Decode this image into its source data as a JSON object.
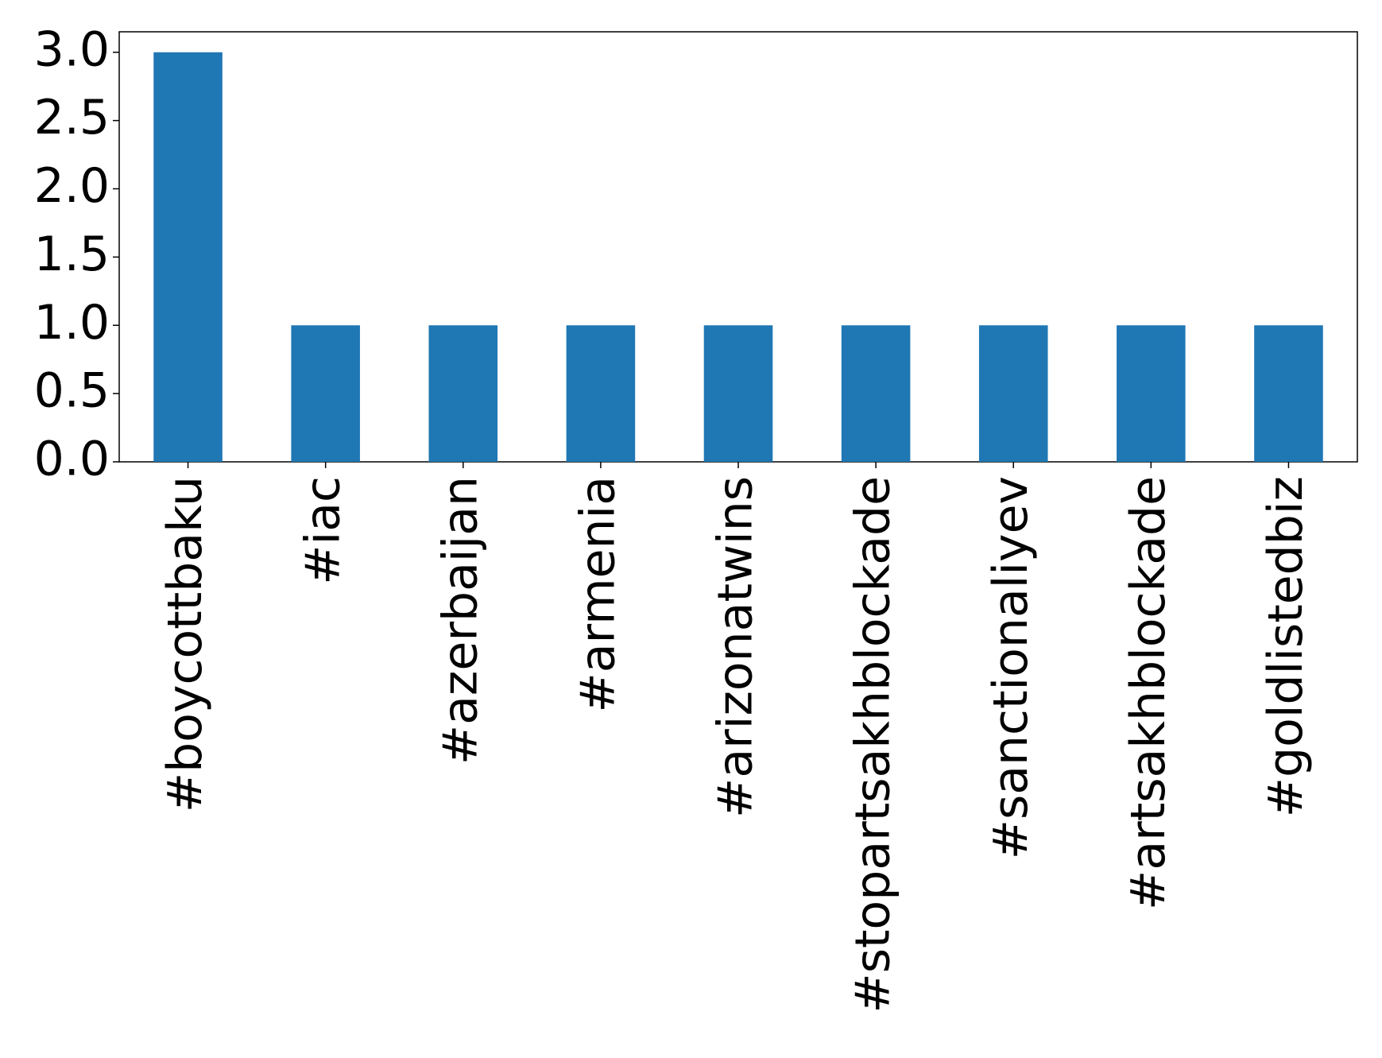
{
  "chart_data": {
    "type": "bar",
    "categories": [
      "#boycottbaku",
      "#iac",
      "#azerbaijan",
      "#armenia",
      "#arizonatwins",
      "#stopartsakhblockade",
      "#sanctionaliyev",
      "#artsakhblockade",
      "#goldlistedbiz"
    ],
    "values": [
      3,
      1,
      1,
      1,
      1,
      1,
      1,
      1,
      1
    ],
    "color": "#1f77b4",
    "ylim": [
      0,
      3.15
    ],
    "yticks": [
      {
        "value": 0,
        "label": "0.0"
      },
      {
        "value": 0.5,
        "label": "0.5"
      },
      {
        "value": 1,
        "label": "1.0"
      },
      {
        "value": 1.5,
        "label": "1.5"
      },
      {
        "value": 2,
        "label": "2.0"
      },
      {
        "value": 2.5,
        "label": "2.5"
      },
      {
        "value": 3,
        "label": "3.0"
      }
    ],
    "grid": false
  }
}
